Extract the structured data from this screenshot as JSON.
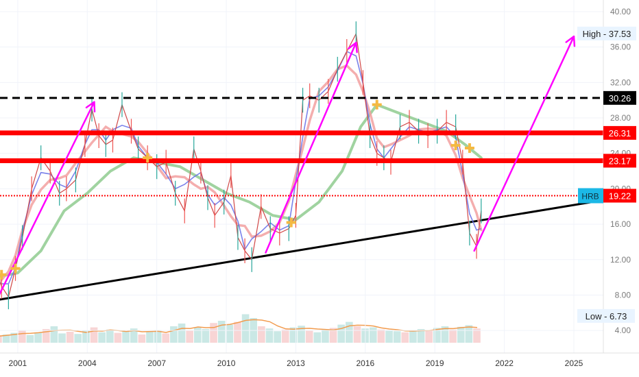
{
  "chart_data": {
    "type": "line",
    "symbol": "HRB",
    "x_range": [
      2000.0,
      2026.5
    ],
    "y_range": [
      2.0,
      41.0
    ],
    "x_ticks": [
      {
        "value": 2001,
        "label": "2001"
      },
      {
        "value": 2004,
        "label": "2004"
      },
      {
        "value": 2007,
        "label": "2007"
      },
      {
        "value": 2010,
        "label": "2010"
      },
      {
        "value": 2013,
        "label": "2013"
      },
      {
        "value": 2016,
        "label": "2016"
      },
      {
        "value": 2019,
        "label": "2019"
      },
      {
        "value": 2022,
        "label": "2022"
      },
      {
        "value": 2025,
        "label": "2025"
      }
    ],
    "y_ticks": [
      {
        "value": 4,
        "label": "4.00"
      },
      {
        "value": 8,
        "label": "8.00"
      },
      {
        "value": 12,
        "label": "12.00"
      },
      {
        "value": 16,
        "label": "16.00"
      },
      {
        "value": 20,
        "label": "20.00"
      },
      {
        "value": 24,
        "label": "24.00"
      },
      {
        "value": 28,
        "label": "28.00"
      },
      {
        "value": 32,
        "label": "32.00"
      },
      {
        "value": 36,
        "label": "36.00"
      },
      {
        "value": 40,
        "label": "40.00"
      }
    ],
    "price_series": {
      "name": "HRB",
      "x": [
        2000.0,
        2000.3,
        2000.6,
        2000.9,
        2001.2,
        2001.6,
        2002.0,
        2002.4,
        2002.8,
        2003.1,
        2003.5,
        2003.9,
        2004.2,
        2004.5,
        2004.8,
        2005.1,
        2005.5,
        2005.9,
        2006.2,
        2006.6,
        2007.0,
        2007.4,
        2007.8,
        2008.2,
        2008.6,
        2008.9,
        2009.2,
        2009.5,
        2009.9,
        2010.2,
        2010.5,
        2010.8,
        2011.1,
        2011.5,
        2011.9,
        2012.3,
        2012.7,
        2013.0,
        2013.3,
        2013.6,
        2014.0,
        2014.4,
        2014.8,
        2015.2,
        2015.6,
        2015.9,
        2016.2,
        2016.5,
        2016.8,
        2017.1,
        2017.5,
        2017.9,
        2018.3,
        2018.7,
        2019.1,
        2019.5,
        2019.9,
        2020.2,
        2020.5,
        2020.8,
        2021.0
      ],
      "y": [
        11.0,
        9.0,
        7.8,
        11.0,
        14.5,
        20.0,
        23.5,
        22.0,
        19.5,
        20.0,
        21.0,
        25.0,
        29.0,
        26.0,
        25.0,
        25.5,
        29.5,
        26.5,
        24.5,
        23.5,
        22.5,
        23.0,
        19.5,
        17.5,
        24.5,
        22.0,
        19.0,
        17.0,
        18.5,
        21.5,
        14.5,
        13.0,
        12.0,
        18.0,
        15.5,
        15.0,
        15.5,
        17.0,
        30.0,
        30.5,
        30.0,
        31.0,
        33.5,
        35.5,
        37.5,
        32.0,
        26.0,
        24.0,
        23.5,
        23.0,
        27.0,
        27.5,
        26.5,
        26.0,
        26.5,
        27.5,
        27.0,
        23.0,
        15.0,
        13.5,
        17.5
      ]
    },
    "series": [
      {
        "color": "#6b74e8",
        "values_from": "price_smoothed_fast"
      },
      {
        "color": "#f2a0a0",
        "values_from": "price_smoothed_slow"
      },
      {
        "color": "#8fcb8f",
        "values_from": "long_moving_average"
      }
    ],
    "long_moving_average": {
      "x": [
        2000.0,
        2001.0,
        2002.0,
        2003.0,
        2004.0,
        2005.0,
        2006.0,
        2007.0,
        2008.0,
        2009.0,
        2010.0,
        2011.0,
        2012.0,
        2013.0,
        2014.0,
        2015.0,
        2015.8,
        2016.5,
        2017.5,
        2018.5,
        2019.5,
        2020.3,
        2021.0
      ],
      "y": [
        10.0,
        10.5,
        13.0,
        17.5,
        19.5,
        22.0,
        23.5,
        23.0,
        22.5,
        21.0,
        19.5,
        18.5,
        17.0,
        16.5,
        18.5,
        22.0,
        27.0,
        29.5,
        28.5,
        27.5,
        26.5,
        25.0,
        23.5
      ]
    },
    "horizontal_levels": [
      {
        "value": 30.26,
        "label": "30.26",
        "style": "dashed",
        "color": "#000000"
      },
      {
        "value": 26.31,
        "label": "26.31",
        "style": "solid",
        "color": "#ff0000"
      },
      {
        "value": 23.17,
        "label": "23.17",
        "style": "solid",
        "color": "#ff0000"
      },
      {
        "value": 19.22,
        "label": "19.22",
        "style": "dotted",
        "color": "#ff0000"
      }
    ],
    "trendline": {
      "x0": 2000.0,
      "y0": 7.4,
      "x1": 2026.0,
      "y1": 18.6,
      "color": "#000000"
    },
    "arrows": [
      {
        "x0": 2000.1,
        "y0": 7.5,
        "x1": 2004.3,
        "y1": 29.8
      },
      {
        "x0": 2011.7,
        "y0": 12.8,
        "x1": 2015.6,
        "y1": 36.5
      },
      {
        "x0": 2020.7,
        "y0": 13.0,
        "x1": 2025.0,
        "y1": 37.2
      }
    ],
    "cross_markers": [
      {
        "x": 2000.3,
        "y": 10.3
      },
      {
        "x": 2000.9,
        "y": 11.0
      },
      {
        "x": 2006.6,
        "y": 23.5
      },
      {
        "x": 2012.8,
        "y": 16.2
      },
      {
        "x": 2016.5,
        "y": 29.5
      },
      {
        "x": 2019.9,
        "y": 24.9
      },
      {
        "x": 2020.5,
        "y": 24.6
      }
    ],
    "volume_ylim": [
      0,
      100
    ],
    "volume": [
      12,
      15,
      18,
      22,
      14,
      19,
      25,
      30,
      17,
      20,
      16,
      22,
      28,
      19,
      24,
      18,
      21,
      26,
      15,
      20,
      23,
      17,
      30,
      35,
      22,
      28,
      25,
      36,
      40,
      33,
      38,
      52,
      45,
      30,
      26,
      21,
      24,
      28,
      31,
      22,
      19,
      25,
      27,
      33,
      38,
      30,
      26,
      28,
      24,
      22,
      21,
      19,
      23,
      25,
      22,
      27,
      30,
      24,
      29,
      32,
      26
    ],
    "annotations": {
      "high_label": "High - 37.53",
      "high_value_y": 37.53,
      "low_label": "Low - 6.73",
      "low_value_y": 6.73,
      "last_price_label": "19.22",
      "last_price_value": 19.22,
      "symbol_tag": "HRB"
    },
    "colors": {
      "price": "#d04646",
      "level_red": "#ff0000",
      "arrow": "#ff00ff",
      "trendline": "#000000",
      "marker": "#f4b942",
      "tag_blue": "#1cb8e6",
      "label_bg": "#e9f4ff",
      "axis_text": "#7a7a7a"
    }
  }
}
